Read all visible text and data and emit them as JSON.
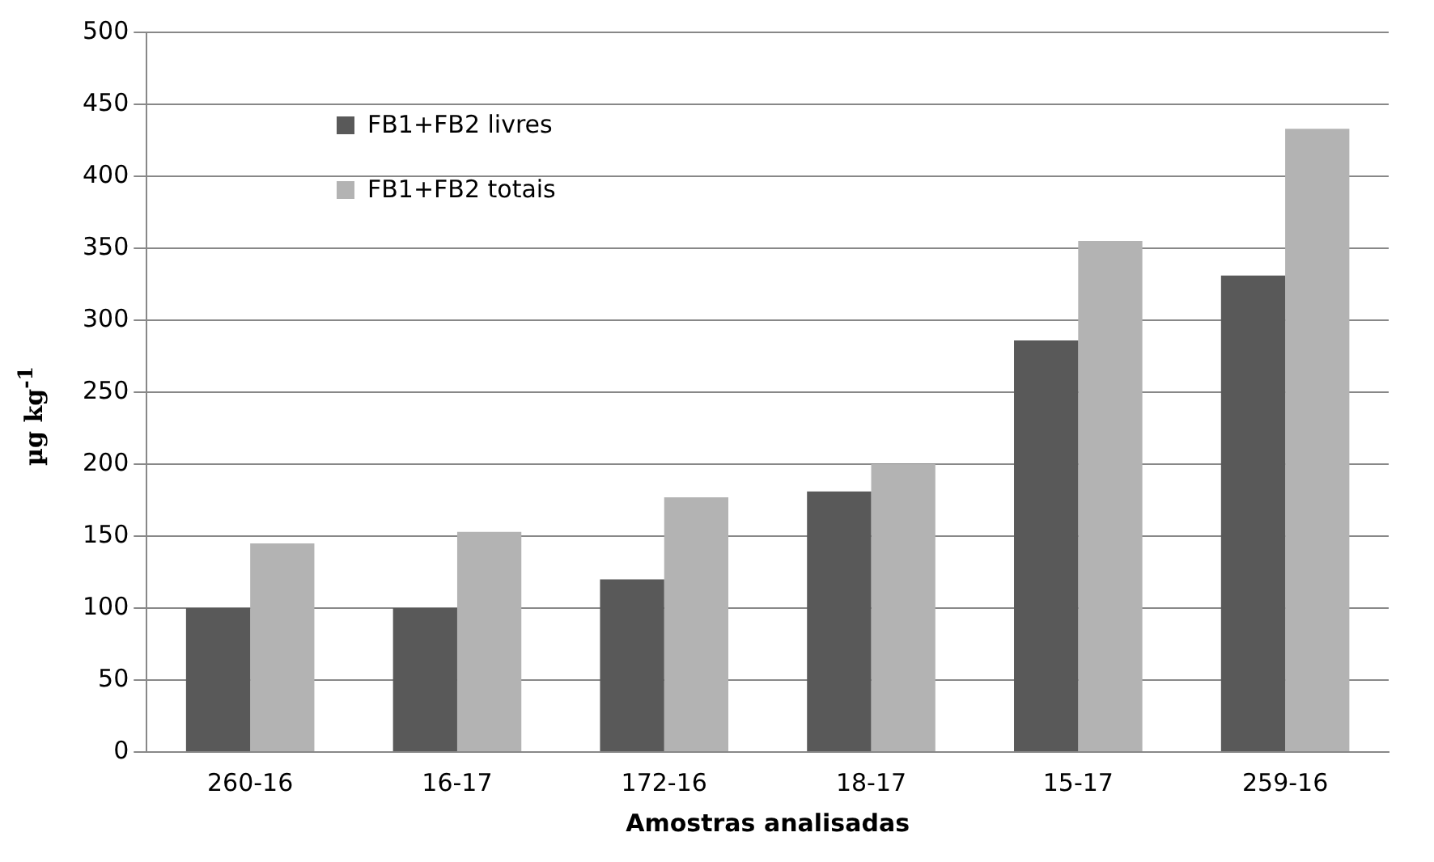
{
  "chart_data": {
    "type": "bar",
    "xlabel": "Amostras analisadas",
    "ylabel": "µg kg$^{-1}$",
    "categories": [
      "260-16",
      "16-17",
      "172-16",
      "18-17",
      "15-17",
      "259-16"
    ],
    "series": [
      {
        "name": "FB1+FB2 livres",
        "color": "#595959",
        "values": [
          100,
          100,
          120,
          181,
          286,
          331
        ]
      },
      {
        "name": "FB1+FB2 totais",
        "color": "#b3b3b3",
        "values": [
          145,
          153,
          177,
          200,
          355,
          433
        ]
      }
    ],
    "ylim": [
      0,
      500
    ],
    "yticks": [
      0,
      50,
      100,
      150,
      200,
      250,
      300,
      350,
      400,
      450,
      500
    ],
    "grid": "y",
    "legend": "top left"
  }
}
